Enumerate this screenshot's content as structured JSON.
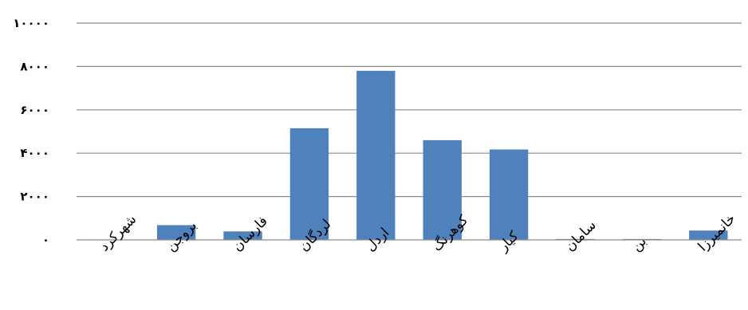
{
  "chart_data": {
    "type": "bar",
    "categories": [
      "شهرکرد",
      "بروجن",
      "فارسان",
      "لردگان",
      "اردل",
      "کوهرنگ",
      "کیار",
      "سامان",
      "بن",
      "خانمیرزا"
    ],
    "series": [
      {
        "values": [
          10,
          680,
          390,
          5150,
          7800,
          4600,
          4170,
          40,
          40,
          430
        ],
        "color": "#4f81bd"
      }
    ],
    "y_ticks": [
      0,
      2000,
      4000,
      6000,
      8000,
      10000
    ],
    "y_tick_labels": [
      "۰",
      "۲۰۰۰",
      "۴۰۰۰",
      "۶۰۰۰",
      "۸۰۰۰",
      "۱۰۰۰۰"
    ],
    "ylim": [
      0,
      10000
    ],
    "grid": true,
    "legend": "none",
    "title": "",
    "xlabel": "",
    "ylabel": ""
  }
}
